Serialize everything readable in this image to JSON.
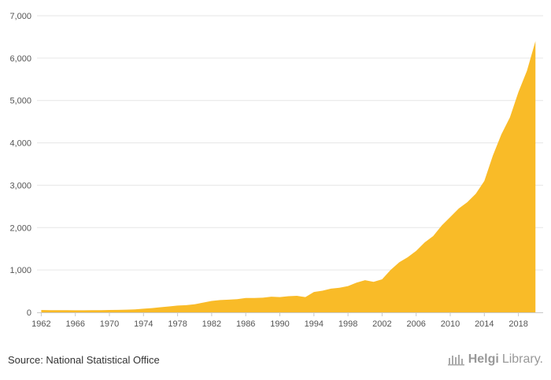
{
  "chart_data": {
    "type": "area",
    "title": "",
    "xlabel": "",
    "ylabel": "",
    "ylim": [
      0,
      7000
    ],
    "yticks": [
      0,
      1000,
      2000,
      3000,
      4000,
      5000,
      6000,
      7000
    ],
    "ytick_labels": [
      "0",
      "1,000",
      "2,000",
      "3,000",
      "4,000",
      "5,000",
      "6,000",
      "7,000"
    ],
    "xticks": [
      1962,
      1966,
      1970,
      1974,
      1978,
      1982,
      1986,
      1990,
      1994,
      1998,
      2002,
      2006,
      2010,
      2014,
      2018
    ],
    "xtick_labels": [
      "1962",
      "1966",
      "1970",
      "1974",
      "1978",
      "1982",
      "1986",
      "1990",
      "1994",
      "1998",
      "2002",
      "2006",
      "2010",
      "2014",
      "2018"
    ],
    "grid": true,
    "color": "#f9bb28",
    "x": [
      1962,
      1963,
      1964,
      1965,
      1966,
      1967,
      1968,
      1969,
      1970,
      1971,
      1972,
      1973,
      1974,
      1975,
      1976,
      1977,
      1978,
      1979,
      1980,
      1981,
      1982,
      1983,
      1984,
      1985,
      1986,
      1987,
      1988,
      1989,
      1990,
      1991,
      1992,
      1993,
      1994,
      1995,
      1996,
      1997,
      1998,
      1999,
      2000,
      2001,
      2002,
      2003,
      2004,
      2005,
      2006,
      2007,
      2008,
      2009,
      2010,
      2011,
      2012,
      2013,
      2014,
      2015,
      2016,
      2017,
      2018,
      2019,
      2020
    ],
    "values": [
      55,
      50,
      50,
      50,
      48,
      48,
      50,
      52,
      55,
      58,
      62,
      70,
      85,
      100,
      120,
      140,
      160,
      170,
      190,
      230,
      270,
      290,
      300,
      310,
      340,
      340,
      345,
      370,
      360,
      380,
      390,
      360,
      480,
      510,
      560,
      580,
      620,
      700,
      760,
      720,
      780,
      1000,
      1180,
      1300,
      1450,
      1650,
      1800,
      2050,
      2250,
      2450,
      2600,
      2800,
      3100,
      3700,
      4200,
      4600,
      5200,
      5700,
      6400
    ]
  },
  "footer": {
    "source": "Source: National Statistical Office",
    "brand_part1": "Helgi",
    "brand_part2": "Library."
  }
}
